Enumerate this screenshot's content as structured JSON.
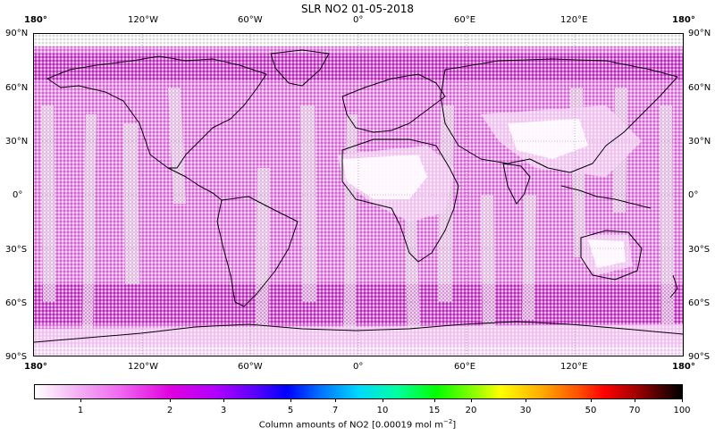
{
  "title": "SLR NO2 01-05-2018",
  "lon_ticks": [
    "180°",
    "120°W",
    "60°W",
    "0°",
    "60°E",
    "120°E",
    "180°"
  ],
  "lat_ticks": [
    "90°N",
    "60°N",
    "30°N",
    "0°",
    "30°S",
    "60°S",
    "90°S"
  ],
  "colorbar": {
    "label": "Column amounts of NO2 [0.00019 mol m",
    "label_exp": "−2",
    "label_end": "]",
    "ticks": [
      "1",
      "2",
      "3",
      "5",
      "7",
      "10",
      "15",
      "20",
      "30",
      "50",
      "70",
      "100"
    ],
    "min_color": "#ffffff",
    "mid_color": "#e000e0",
    "max_color": "#000000"
  },
  "colors": {
    "nodata": "#d8d8d8",
    "low": "#f3c6f3",
    "medium": "#e463e4",
    "high": "#cc22cc",
    "coastline": "#000000"
  }
}
